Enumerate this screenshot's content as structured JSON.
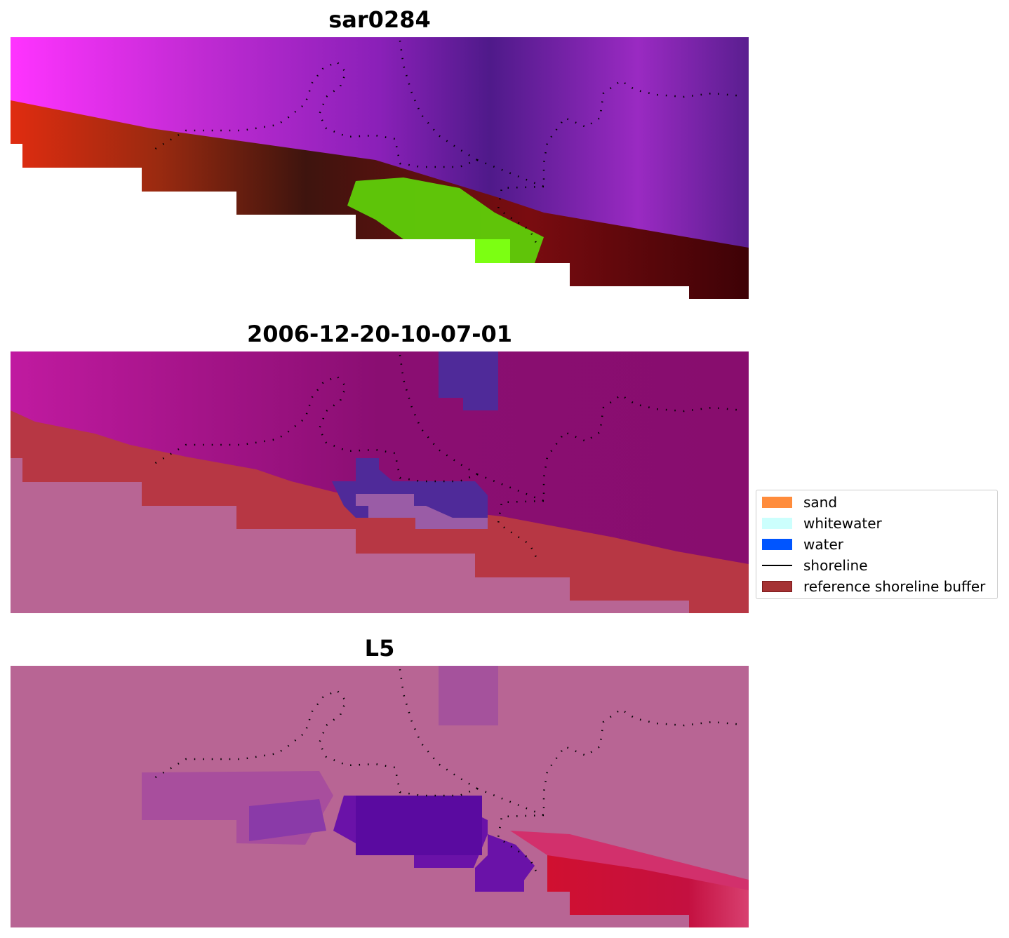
{
  "panels": [
    {
      "title": "sar0284"
    },
    {
      "title": "2006-12-20-10-07-01"
    },
    {
      "title": "L5"
    }
  ],
  "legend": {
    "items": [
      {
        "label": "sand",
        "color": "#ff8c3c",
        "kind": "patch"
      },
      {
        "label": "whitewater",
        "color": "#ccfffd",
        "kind": "patch"
      },
      {
        "label": "water",
        "color": "#0055ff",
        "kind": "patch"
      },
      {
        "label": "shoreline",
        "color": "#000000",
        "kind": "line"
      },
      {
        "label": "reference shoreline buffer",
        "color": "#a53233",
        "kind": "patch"
      }
    ]
  },
  "colors": {
    "shoreline": "#000000",
    "buffer": "#b73744",
    "background_land": "#b86594"
  }
}
